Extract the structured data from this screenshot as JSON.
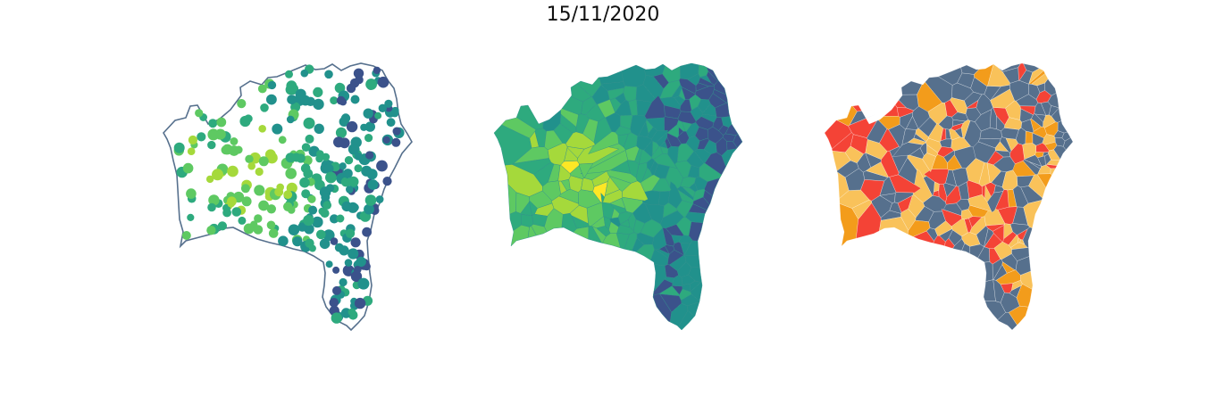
{
  "title": "15/11/2020",
  "colors": {
    "outline": "#56708d",
    "viridis": [
      "#440154",
      "#3b528b",
      "#21918c",
      "#2eaa7e",
      "#5ec962",
      "#a5d93b",
      "#fde725"
    ],
    "risk": [
      "#56708d",
      "#f9c25a",
      "#f39c1b",
      "#f44336"
    ]
  },
  "maps": [
    {
      "name": "municipal-points-map",
      "style": "scatter-on-outline"
    },
    {
      "name": "municipal-choropleth-map",
      "style": "viridis-choropleth"
    },
    {
      "name": "risk-category-map",
      "style": "categorical-choropleth"
    }
  ]
}
